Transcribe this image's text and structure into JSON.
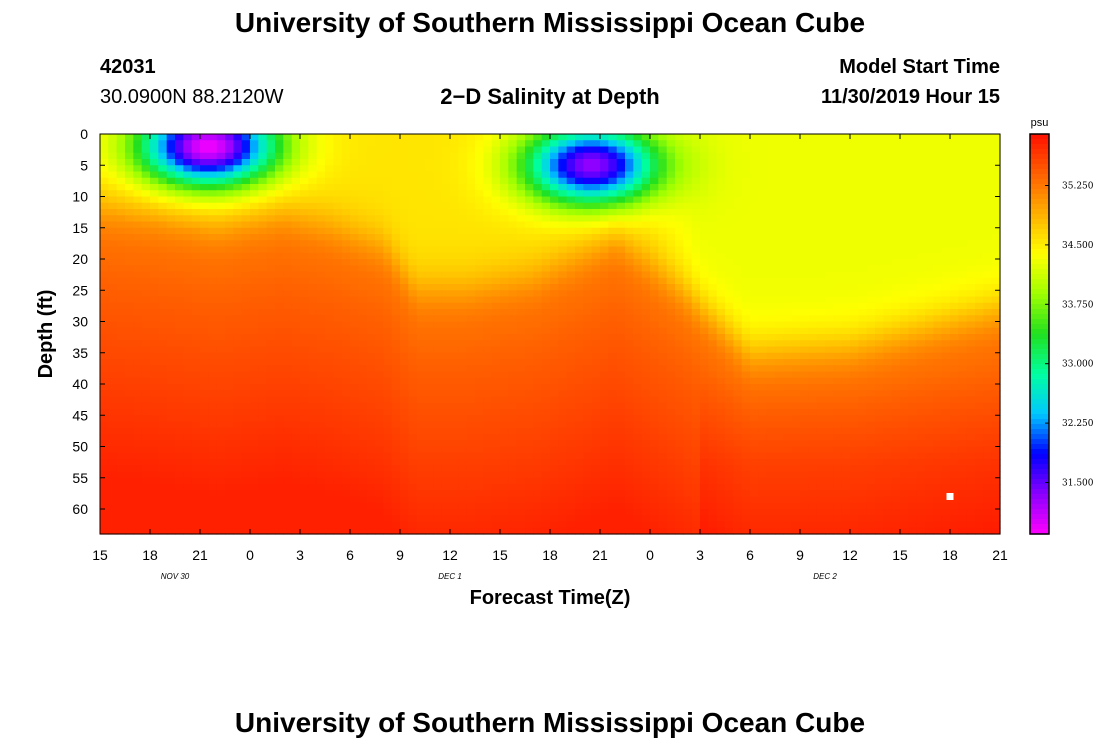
{
  "header": {
    "title_top": "University of Southern Mississippi Ocean Cube",
    "title_bottom": "University of Southern Mississippi Ocean Cube",
    "station_id": "42031",
    "coords": "30.0900N 88.2120W",
    "plot_title": "2−D Salinity at Depth",
    "model_start_label": "Model Start Time",
    "model_start_value": "11/30/2019 Hour 15"
  },
  "chart_data": {
    "type": "heatmap",
    "title": "2−D Salinity at Depth",
    "xlabel": "Forecast Time(Z)",
    "ylabel": "Depth (ft)",
    "x_ticks": [
      "15",
      "18",
      "21",
      "0",
      "3",
      "6",
      "9",
      "12",
      "15",
      "18",
      "21",
      "0",
      "3",
      "6",
      "9",
      "12",
      "15",
      "18",
      "21"
    ],
    "x_range_hours_from_start": [
      0,
      54
    ],
    "date_labels": [
      {
        "label": "NOV 30",
        "hour": 4.5
      },
      {
        "label": "DEC 1",
        "hour": 21
      },
      {
        "label": "DEC 2",
        "hour": 43.5
      }
    ],
    "ylim": [
      0,
      64
    ],
    "y_ticks": [
      0,
      5,
      10,
      15,
      20,
      25,
      30,
      35,
      40,
      45,
      50,
      55,
      60
    ],
    "colorbar": {
      "unit": "psu",
      "range": [
        30.85,
        35.9
      ],
      "tick_labels": [
        "35.250",
        "34.500",
        "33.750",
        "33.000",
        "32.250",
        "31.500"
      ],
      "tick_values": [
        35.25,
        34.5,
        33.75,
        33.0,
        32.25,
        31.5
      ],
      "colors": [
        "#ff00ff",
        "#8a00ff",
        "#0000ff",
        "#00c8ff",
        "#00ffa0",
        "#20e020",
        "#a0ff00",
        "#ffff00",
        "#ffb000",
        "#ff6000",
        "#ff1000"
      ]
    },
    "thermocline_depth_ft": [
      {
        "h": 0,
        "d": 12
      },
      {
        "h": 3,
        "d": 13
      },
      {
        "h": 7,
        "d": 15
      },
      {
        "h": 11,
        "d": 13
      },
      {
        "h": 14,
        "d": 15
      },
      {
        "h": 17,
        "d": 18
      },
      {
        "h": 19,
        "d": 25
      },
      {
        "h": 22,
        "d": 25
      },
      {
        "h": 26,
        "d": 23
      },
      {
        "h": 31,
        "d": 17
      },
      {
        "h": 35,
        "d": 25
      },
      {
        "h": 39,
        "d": 35
      },
      {
        "h": 45,
        "d": 34
      },
      {
        "h": 51,
        "d": 30
      },
      {
        "h": 54,
        "d": 28
      }
    ],
    "low_salinity_cores": [
      {
        "center_hour": 6.5,
        "depth_ft": 2,
        "min_psu": 30.9
      },
      {
        "center_hour": 29.5,
        "depth_ft": 5,
        "min_psu": 31.3
      }
    ],
    "surface_salinity_after_hour_33_psu": 34.3,
    "bottom_salinity_psu": 35.8,
    "marker": {
      "hour": 51,
      "depth_ft": 58
    }
  }
}
